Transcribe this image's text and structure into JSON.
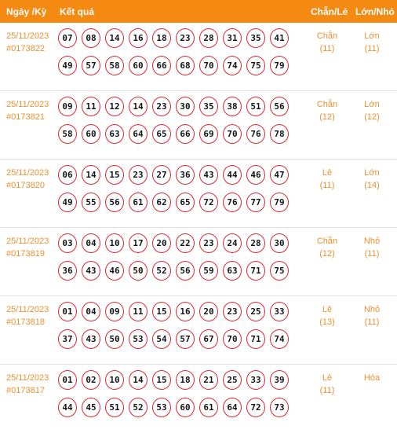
{
  "header": {
    "date": "Ngày /Kỳ",
    "result": "Kết quả",
    "odd_even": "Chẵn/Lẻ",
    "big_small": "Lớn/Nhỏ"
  },
  "rows": [
    {
      "date": "25/11/2023",
      "period": "#0173822",
      "numbers": [
        "07",
        "08",
        "14",
        "16",
        "18",
        "23",
        "28",
        "31",
        "35",
        "41",
        "49",
        "57",
        "58",
        "60",
        "66",
        "68",
        "70",
        "74",
        "75",
        "79"
      ],
      "odd_even": "Chẵn",
      "odd_even_count": "(11)",
      "big_small": "Lớn",
      "big_small_count": "(11)"
    },
    {
      "date": "25/11/2023",
      "period": "#0173821",
      "numbers": [
        "09",
        "11",
        "12",
        "14",
        "23",
        "30",
        "35",
        "38",
        "51",
        "56",
        "58",
        "60",
        "63",
        "64",
        "65",
        "66",
        "69",
        "70",
        "76",
        "78"
      ],
      "odd_even": "Chẵn",
      "odd_even_count": "(12)",
      "big_small": "Lớn",
      "big_small_count": "(12)"
    },
    {
      "date": "25/11/2023",
      "period": "#0173820",
      "numbers": [
        "06",
        "14",
        "15",
        "23",
        "27",
        "36",
        "43",
        "44",
        "46",
        "47",
        "49",
        "55",
        "56",
        "61",
        "62",
        "65",
        "72",
        "76",
        "77",
        "79"
      ],
      "odd_even": "Lẻ",
      "odd_even_count": "(11)",
      "big_small": "Lớn",
      "big_small_count": "(14)"
    },
    {
      "date": "25/11/2023",
      "period": "#0173819",
      "numbers": [
        "03",
        "04",
        "10",
        "17",
        "20",
        "22",
        "23",
        "24",
        "28",
        "30",
        "36",
        "43",
        "46",
        "50",
        "52",
        "56",
        "59",
        "63",
        "71",
        "75"
      ],
      "odd_even": "Chẵn",
      "odd_even_count": "(12)",
      "big_small": "Nhỏ",
      "big_small_count": "(11)"
    },
    {
      "date": "25/11/2023",
      "period": "#0173818",
      "numbers": [
        "01",
        "04",
        "09",
        "11",
        "15",
        "16",
        "20",
        "23",
        "25",
        "33",
        "37",
        "43",
        "50",
        "53",
        "54",
        "57",
        "67",
        "70",
        "71",
        "74"
      ],
      "odd_even": "Lẻ",
      "odd_even_count": "(13)",
      "big_small": "Nhỏ",
      "big_small_count": "(11)"
    },
    {
      "date": "25/11/2023",
      "period": "#0173817",
      "numbers": [
        "01",
        "02",
        "10",
        "14",
        "15",
        "18",
        "21",
        "25",
        "33",
        "39",
        "44",
        "45",
        "51",
        "52",
        "53",
        "60",
        "61",
        "64",
        "72",
        "73"
      ],
      "odd_even": "Lẻ",
      "odd_even_count": "(11)",
      "big_small": "Hòa",
      "big_small_count": ""
    }
  ]
}
